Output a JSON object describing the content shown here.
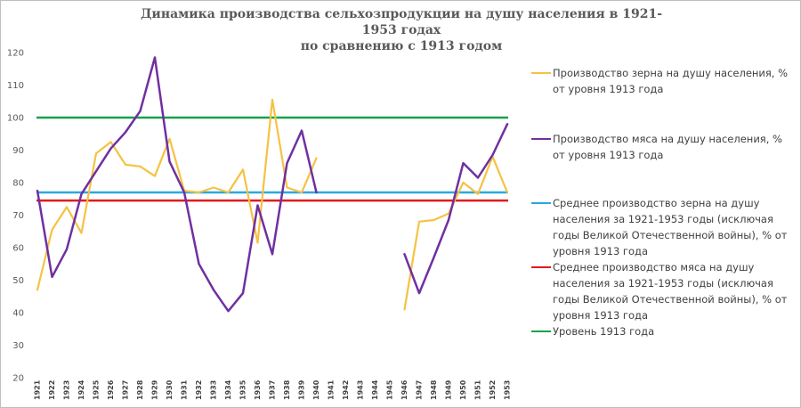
{
  "chart_data": {
    "type": "line",
    "title_line1": "Динамика производства сельхозпродукции на душу населения в 1921-1953 годах",
    "title_line2": "по сравнению с 1913 годом",
    "ylim": [
      20,
      120
    ],
    "yticks": [
      20,
      30,
      40,
      50,
      60,
      70,
      80,
      90,
      100,
      110,
      120
    ],
    "categories": [
      "1921",
      "1922",
      "1923",
      "1924",
      "1925",
      "1926",
      "1927",
      "1928",
      "1929",
      "1930",
      "1931",
      "1932",
      "1933",
      "1934",
      "1935",
      "1936",
      "1937",
      "1938",
      "1939",
      "1940",
      "1941",
      "1942",
      "1943",
      "1944",
      "1945",
      "1946",
      "1947",
      "1948",
      "1949",
      "1950",
      "1951",
      "1952",
      "1953"
    ],
    "series": [
      {
        "name": "Производство зерна на душу населения, % от уровня 1913 года",
        "color": "#f5c242",
        "values": [
          47,
          65.5,
          72.5,
          64.5,
          89,
          92.5,
          85.5,
          85,
          82,
          93.5,
          77.5,
          77,
          78.5,
          77,
          84,
          61.5,
          105.5,
          78.5,
          77,
          87.5,
          null,
          null,
          null,
          null,
          null,
          41,
          68,
          68.5,
          70.5,
          80,
          76.5,
          88,
          77
        ]
      },
      {
        "name": "Производство мяса на душу населения, % от уровня 1913 года",
        "color": "#7030a0",
        "values": [
          77.5,
          51,
          59.5,
          76.5,
          83.5,
          90.5,
          95.5,
          102,
          118.5,
          86.5,
          77,
          55,
          47,
          40.5,
          46,
          73,
          58,
          86,
          96,
          77,
          null,
          null,
          null,
          null,
          null,
          58,
          46,
          57,
          68.5,
          86,
          81.5,
          88.5,
          98
        ]
      },
      {
        "name": "Среднее производство зерна на душу населения за 1921-1953 годы (исключая годы Великой Отечественной войны), % от уровня 1913 года",
        "color": "#29a8e0",
        "constant": 77
      },
      {
        "name": "Среднее производство мяса на душу населения за 1921-1953 годы (исключая годы Великой Отечественной войны), % от уровня 1913 года",
        "color": "#e31a1c",
        "constant": 74.5
      },
      {
        "name": "Уровень 1913 года",
        "color": "#1aa14a",
        "constant": 100
      }
    ]
  }
}
